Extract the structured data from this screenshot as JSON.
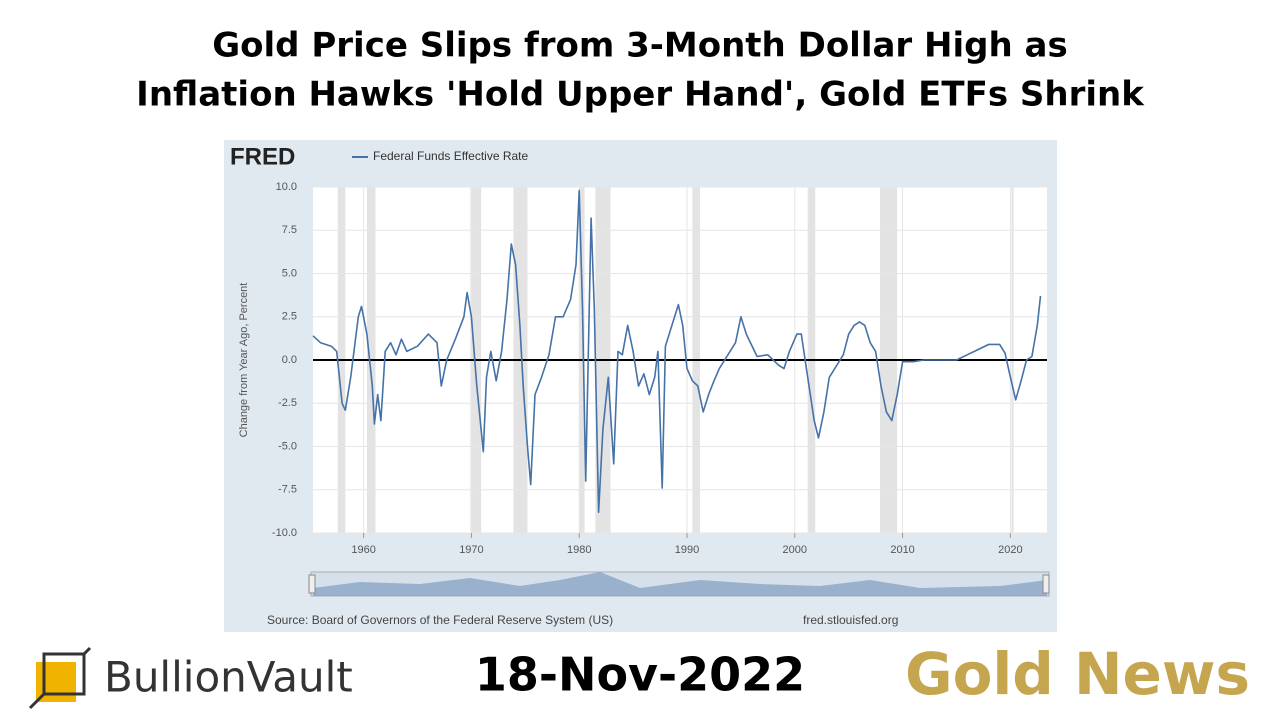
{
  "header": {
    "title_line1": "Gold Price Slips from 3-Month Dollar High as",
    "title_line2": "Inflation Hawks 'Hold Upper Hand', Gold ETFs Shrink"
  },
  "chart_data": {
    "type": "line",
    "logo": "FRED",
    "ylabel": "Change from Year Ago, Percent",
    "source": "Source: Board of Governors of the Federal Reserve System (US)",
    "site": "fred.stlouisfed.org",
    "x": [
      1955.3,
      1956,
      1957,
      1957.5,
      1958,
      1958.3,
      1958.8,
      1959.5,
      1959.8,
      1960.3,
      1960.8,
      1961.0,
      1961.3,
      1961.6,
      1962,
      1962.5,
      1963,
      1963.5,
      1964,
      1965,
      1966,
      1966.8,
      1967.2,
      1967.7,
      1968.5,
      1969.3,
      1969.6,
      1970.0,
      1970.5,
      1970.9,
      1971.1,
      1971.4,
      1971.8,
      1972.3,
      1972.8,
      1973.3,
      1973.7,
      1974.1,
      1974.5,
      1974.8,
      1975.2,
      1975.5,
      1975.9,
      1976.5,
      1977.2,
      1977.8,
      1978.5,
      1979.2,
      1979.7,
      1980.0,
      1980.3,
      1980.6,
      1980.9,
      1981.1,
      1981.4,
      1981.8,
      1982.2,
      1982.7,
      1983.2,
      1983.6,
      1984.0,
      1984.5,
      1985.0,
      1985.5,
      1986.0,
      1986.5,
      1987.0,
      1987.3,
      1987.7,
      1988.0,
      1988.6,
      1989.2,
      1989.6,
      1990.0,
      1990.5,
      1991.0,
      1991.5,
      1992.0,
      1992.5,
      1993.0,
      1993.5,
      1994.5,
      1995.0,
      1995.5,
      1996.5,
      1997.5,
      1998.5,
      1999.0,
      1999.5,
      2000.2,
      2000.6,
      2001.2,
      2001.8,
      2002.2,
      2002.7,
      2003.2,
      2004.0,
      2004.5,
      2005.0,
      2005.5,
      2006.0,
      2006.5,
      2007.0,
      2007.5,
      2008.0,
      2008.5,
      2009.0,
      2009.5,
      2010.0,
      2011.0,
      2012.0,
      2013.0,
      2014.0,
      2015.0,
      2016.0,
      2017.0,
      2018.0,
      2019.0,
      2019.5,
      2020.0,
      2020.5,
      2021.0,
      2021.5,
      2022.0,
      2022.5,
      2022.8
    ],
    "series": [
      {
        "name": "Federal Funds Effective Rate",
        "color": "#4572a7",
        "values": [
          1.4,
          1.0,
          0.8,
          0.5,
          -2.5,
          -2.9,
          -1.0,
          2.5,
          3.1,
          1.5,
          -1.5,
          -3.7,
          -2.0,
          -3.5,
          0.5,
          1.0,
          0.3,
          1.2,
          0.5,
          0.8,
          1.5,
          1.0,
          -1.5,
          0.0,
          1.2,
          2.5,
          3.9,
          2.5,
          -1.5,
          -4.0,
          -5.3,
          -1.0,
          0.5,
          -1.2,
          0.5,
          3.5,
          6.7,
          5.5,
          2.0,
          -1.5,
          -5.0,
          -7.2,
          -2.0,
          -1.0,
          0.3,
          2.5,
          2.5,
          3.5,
          5.5,
          9.8,
          3.0,
          -7.0,
          2.0,
          8.2,
          3.0,
          -8.8,
          -4.0,
          -1.0,
          -6.0,
          0.5,
          0.3,
          2.0,
          0.5,
          -1.5,
          -0.8,
          -2.0,
          -1.0,
          0.5,
          -7.4,
          0.8,
          2.0,
          3.2,
          2.0,
          -0.5,
          -1.2,
          -1.5,
          -3.0,
          -2.0,
          -1.2,
          -0.5,
          0.0,
          1.0,
          2.5,
          1.5,
          0.2,
          0.3,
          -0.3,
          -0.5,
          0.5,
          1.5,
          1.5,
          -1.0,
          -3.5,
          -4.5,
          -3.0,
          -1.0,
          -0.2,
          0.3,
          1.5,
          2.0,
          2.2,
          2.0,
          1.0,
          0.5,
          -1.5,
          -3.0,
          -3.5,
          -2.0,
          -0.1,
          -0.1,
          0.0,
          0.0,
          0.0,
          0.0,
          0.3,
          0.6,
          0.9,
          0.9,
          0.4,
          -1.0,
          -2.3,
          -1.2,
          0.0,
          0.2,
          2.0,
          3.7
        ]
      }
    ],
    "recessions": {
      "start": [
        1957.6,
        1960.3,
        1969.9,
        1973.9,
        1980.0,
        1981.5,
        1990.5,
        2001.2,
        2007.9,
        2020.1
      ],
      "end": [
        1958.3,
        1961.1,
        1970.9,
        1975.2,
        1980.5,
        1982.9,
        1991.2,
        2001.9,
        2009.5,
        2020.3
      ]
    },
    "xlim": [
      1955.3,
      2023.4
    ],
    "ylim": [
      -10,
      10
    ],
    "xticks": [
      1960,
      1970,
      1980,
      1990,
      2000,
      2010,
      2020
    ],
    "yticks": [
      {
        "value": 10,
        "label": "10.0"
      },
      7.5,
      {
        "value": 5,
        "label": "5.0"
      },
      2.5,
      {
        "value": 0,
        "label": "0.0"
      },
      -2.5,
      {
        "value": -5,
        "label": "-5.0"
      },
      -7.5,
      {
        "value": -10,
        "label": "-10.0"
      }
    ],
    "grid": true
  },
  "footer": {
    "brand": "BullionVault",
    "date": "18-Nov-2022",
    "tag": "Gold News"
  }
}
